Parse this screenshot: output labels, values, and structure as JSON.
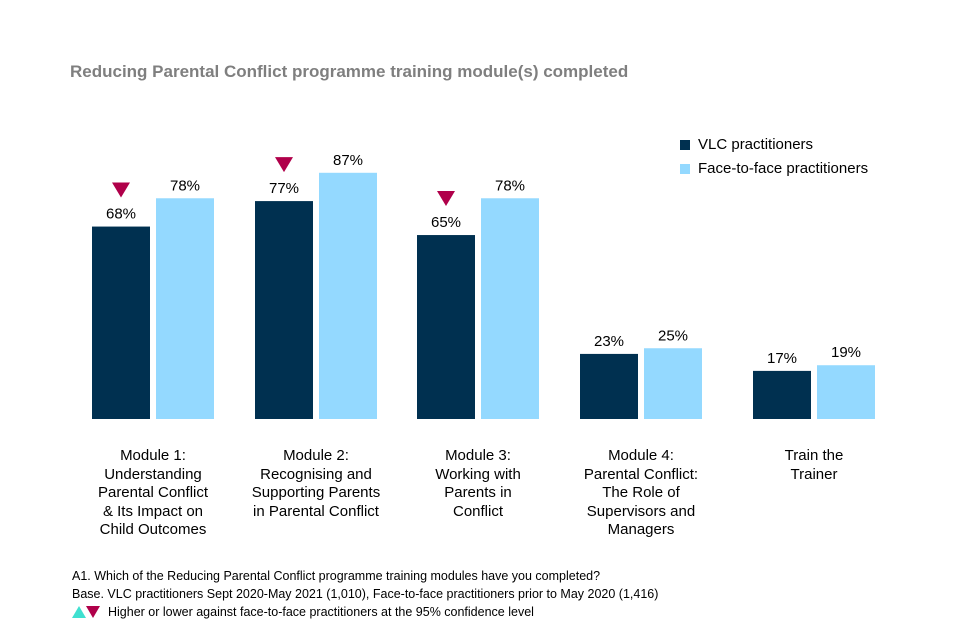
{
  "chart_data": {
    "type": "bar",
    "title": "Reducing Parental Conflict programme training module(s) completed",
    "categories": [
      "Module 1: Understanding Parental Conflict & Its Impact on Child Outcomes",
      "Module 2: Recognising and Supporting Parents in Parental Conflict",
      "Module 3: Working with Parents in Conflict",
      "Module 4: Parental Conflict: The Role of Supervisors and Managers",
      "Train the Trainer"
    ],
    "category_lines": [
      [
        "Module 1:",
        "Understanding",
        "Parental Conflict",
        "& Its Impact on",
        "Child Outcomes"
      ],
      [
        "Module 2:",
        "Recognising and",
        "Supporting Parents",
        "in Parental Conflict"
      ],
      [
        "Module 3:",
        "Working with",
        "Parents in",
        "Conflict"
      ],
      [
        "Module 4:",
        "Parental Conflict:",
        "The Role of",
        "Supervisors and",
        "Managers"
      ],
      [
        "Train the",
        "Trainer"
      ]
    ],
    "series": [
      {
        "name": "VLC practitioners",
        "color": "#003050",
        "values": [
          68,
          77,
          65,
          23,
          17
        ],
        "labels": [
          "68%",
          "77%",
          "65%",
          "23%",
          "17%"
        ],
        "significance": [
          "lower",
          "lower",
          "lower",
          null,
          null
        ]
      },
      {
        "name": "Face-to-face practitioners",
        "color": "#94D9FF",
        "values": [
          78,
          87,
          78,
          25,
          19
        ],
        "labels": [
          "78%",
          "87%",
          "78%",
          "25%",
          "19%"
        ],
        "significance": [
          null,
          null,
          null,
          null,
          null
        ]
      }
    ],
    "ylim": [
      0,
      100
    ],
    "unit": "%",
    "grid": false,
    "legend_position": "top-right",
    "significance_colors": {
      "higher": "#40E0D0",
      "lower": "#B0004A"
    }
  },
  "footnotes": {
    "question": "A1. Which of the Reducing Parental Conflict programme training modules have you completed?",
    "base": "Base. VLC practitioners Sept 2020-May 2021 (1,010), Face-to-face practitioners prior to May 2020 (1,416)",
    "significance_key": "Higher or lower against face-to-face practitioners at the 95% confidence level"
  }
}
